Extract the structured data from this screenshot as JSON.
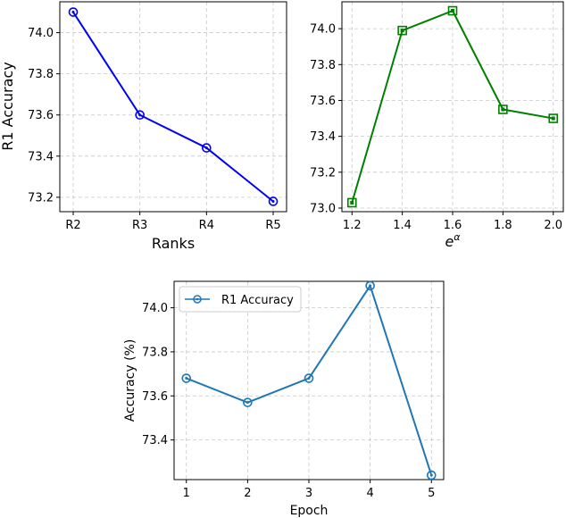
{
  "chart_data": [
    {
      "type": "line",
      "categories": [
        "R2",
        "R3",
        "R4",
        "R5"
      ],
      "series": [
        {
          "values": [
            74.1,
            73.6,
            73.44,
            73.18
          ]
        }
      ],
      "xlabel": "Ranks",
      "ylabel": "R1 Accuracy",
      "ylim": [
        73.13,
        74.15
      ],
      "yticks": [
        73.2,
        73.4,
        73.6,
        73.8,
        74.0
      ],
      "ytick_labels": [
        "73.2",
        "73.4",
        "73.6",
        "73.8",
        "74.0"
      ],
      "grid": true,
      "color": "#0000ff",
      "marker": "circle"
    },
    {
      "type": "line",
      "x": [
        1.2,
        1.4,
        1.6,
        1.8,
        2.0
      ],
      "series": [
        {
          "values": [
            73.03,
            73.99,
            74.1,
            73.55,
            73.5
          ]
        }
      ],
      "xlabel_base": "e",
      "xlabel_sup": "α",
      "ylabel": "",
      "xlim": [
        1.16,
        2.04
      ],
      "ylim": [
        72.98,
        74.15
      ],
      "xticks": [
        1.2,
        1.4,
        1.6,
        1.8,
        2.0
      ],
      "xtick_labels": [
        "1.2",
        "1.4",
        "1.6",
        "1.8",
        "2.0"
      ],
      "yticks": [
        73.0,
        73.2,
        73.4,
        73.6,
        73.8,
        74.0
      ],
      "ytick_labels": [
        "73.0",
        "73.2",
        "73.4",
        "73.6",
        "73.8",
        "74.0"
      ],
      "grid": true,
      "color": "#008000",
      "marker": "square"
    },
    {
      "type": "line",
      "x": [
        1,
        2,
        3,
        4,
        5
      ],
      "series": [
        {
          "name": "R1 Accuracy",
          "values": [
            73.68,
            73.57,
            73.68,
            74.1,
            73.24
          ]
        }
      ],
      "xlabel": "Epoch",
      "ylabel": "Accuracy (%)",
      "xlim": [
        0.8,
        5.2
      ],
      "ylim": [
        73.22,
        74.12
      ],
      "xticks": [
        1,
        2,
        3,
        4,
        5
      ],
      "xtick_labels": [
        "1",
        "2",
        "3",
        "4",
        "5"
      ],
      "yticks": [
        73.4,
        73.6,
        73.8,
        74.0
      ],
      "ytick_labels": [
        "73.4",
        "73.6",
        "73.8",
        "74.0"
      ],
      "grid": true,
      "legend": "top-left",
      "color": "#1f77b4",
      "marker": "circle"
    }
  ]
}
